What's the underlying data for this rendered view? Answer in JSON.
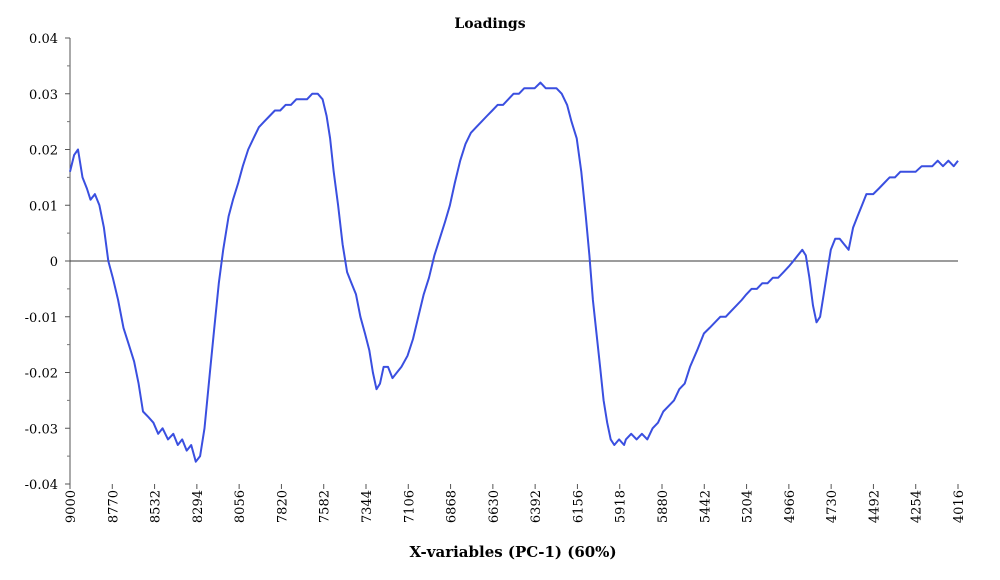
{
  "chart_data": {
    "type": "line",
    "title": "Loadings",
    "xlabel": "X-variables (PC-1) (60%)",
    "ylabel": "",
    "x_reversed": true,
    "xlim": [
      9000,
      4016
    ],
    "ylim": [
      -0.04,
      0.04
    ],
    "x_tick_labels": [
      "9000",
      "8770",
      "8532",
      "8294",
      "8056",
      "7820",
      "7582",
      "7344",
      "7106",
      "6868",
      "6630",
      "6392",
      "6156",
      "5918",
      "5880",
      "5442",
      "5204",
      "4966",
      "4730",
      "4492",
      "4254",
      "4016"
    ],
    "y_ticks": [
      -0.04,
      -0.03,
      -0.02,
      -0.01,
      0,
      0.01,
      0.02,
      0.03,
      0.04
    ],
    "y_tick_labels": [
      "-0.04",
      "-0.03",
      "-0.02",
      "-0.01",
      "0",
      "0.01",
      "0.02",
      "0.03",
      "0.04"
    ],
    "zero_line": true,
    "grid": false,
    "legend": "none",
    "series": [
      {
        "color": "#3a4fe0",
        "points": [
          [
            9000,
            0.016
          ],
          [
            8977,
            0.019
          ],
          [
            8955,
            0.02
          ],
          [
            8930,
            0.015
          ],
          [
            8905,
            0.013
          ],
          [
            8885,
            0.011
          ],
          [
            8860,
            0.012
          ],
          [
            8835,
            0.01
          ],
          [
            8810,
            0.006
          ],
          [
            8785,
            0.0
          ],
          [
            8760,
            -0.003
          ],
          [
            8730,
            -0.007
          ],
          [
            8700,
            -0.012
          ],
          [
            8670,
            -0.015
          ],
          [
            8640,
            -0.018
          ],
          [
            8615,
            -0.022
          ],
          [
            8590,
            -0.027
          ],
          [
            8560,
            -0.028
          ],
          [
            8532,
            -0.029
          ],
          [
            8505,
            -0.031
          ],
          [
            8480,
            -0.03
          ],
          [
            8450,
            -0.032
          ],
          [
            8420,
            -0.031
          ],
          [
            8395,
            -0.033
          ],
          [
            8370,
            -0.032
          ],
          [
            8345,
            -0.034
          ],
          [
            8320,
            -0.033
          ],
          [
            8294,
            -0.036
          ],
          [
            8270,
            -0.035
          ],
          [
            8245,
            -0.03
          ],
          [
            8215,
            -0.02
          ],
          [
            8190,
            -0.012
          ],
          [
            8165,
            -0.004
          ],
          [
            8140,
            0.002
          ],
          [
            8110,
            0.008
          ],
          [
            8085,
            0.011
          ],
          [
            8056,
            0.014
          ],
          [
            8030,
            0.017
          ],
          [
            8000,
            0.02
          ],
          [
            7970,
            0.022
          ],
          [
            7940,
            0.024
          ],
          [
            7910,
            0.025
          ],
          [
            7880,
            0.026
          ],
          [
            7850,
            0.027
          ],
          [
            7820,
            0.027
          ],
          [
            7790,
            0.028
          ],
          [
            7760,
            0.028
          ],
          [
            7730,
            0.029
          ],
          [
            7700,
            0.029
          ],
          [
            7670,
            0.029
          ],
          [
            7640,
            0.03
          ],
          [
            7610,
            0.03
          ],
          [
            7582,
            0.029
          ],
          [
            7560,
            0.026
          ],
          [
            7540,
            0.022
          ],
          [
            7520,
            0.016
          ],
          [
            7495,
            0.01
          ],
          [
            7470,
            0.003
          ],
          [
            7445,
            -0.002
          ],
          [
            7420,
            -0.004
          ],
          [
            7395,
            -0.006
          ],
          [
            7370,
            -0.01
          ],
          [
            7344,
            -0.013
          ],
          [
            7320,
            -0.016
          ],
          [
            7300,
            -0.02
          ],
          [
            7280,
            -0.023
          ],
          [
            7260,
            -0.022
          ],
          [
            7240,
            -0.019
          ],
          [
            7215,
            -0.019
          ],
          [
            7190,
            -0.021
          ],
          [
            7165,
            -0.02
          ],
          [
            7140,
            -0.019
          ],
          [
            7106,
            -0.017
          ],
          [
            7075,
            -0.014
          ],
          [
            7045,
            -0.01
          ],
          [
            7015,
            -0.006
          ],
          [
            6985,
            -0.003
          ],
          [
            6955,
            0.001
          ],
          [
            6925,
            0.004
          ],
          [
            6895,
            0.007
          ],
          [
            6868,
            0.01
          ],
          [
            6840,
            0.014
          ],
          [
            6810,
            0.018
          ],
          [
            6780,
            0.021
          ],
          [
            6750,
            0.023
          ],
          [
            6720,
            0.024
          ],
          [
            6690,
            0.025
          ],
          [
            6660,
            0.026
          ],
          [
            6630,
            0.027
          ],
          [
            6600,
            0.028
          ],
          [
            6570,
            0.028
          ],
          [
            6540,
            0.029
          ],
          [
            6510,
            0.03
          ],
          [
            6480,
            0.03
          ],
          [
            6450,
            0.031
          ],
          [
            6420,
            0.031
          ],
          [
            6392,
            0.031
          ],
          [
            6360,
            0.032
          ],
          [
            6330,
            0.031
          ],
          [
            6300,
            0.031
          ],
          [
            6270,
            0.031
          ],
          [
            6240,
            0.03
          ],
          [
            6210,
            0.028
          ],
          [
            6185,
            0.025
          ],
          [
            6156,
            0.022
          ],
          [
            6130,
            0.016
          ],
          [
            6105,
            0.008
          ],
          [
            6085,
            0.001
          ],
          [
            6065,
            -0.007
          ],
          [
            6045,
            -0.013
          ],
          [
            6025,
            -0.019
          ],
          [
            6005,
            -0.025
          ],
          [
            5985,
            -0.029
          ],
          [
            5965,
            -0.032
          ],
          [
            5945,
            -0.033
          ],
          [
            5918,
            -0.032
          ],
          [
            5890,
            -0.033
          ],
          [
            5880,
            -0.032
          ],
          [
            5850,
            -0.031
          ],
          [
            5820,
            -0.032
          ],
          [
            5790,
            -0.031
          ],
          [
            5760,
            -0.032
          ],
          [
            5730,
            -0.03
          ],
          [
            5700,
            -0.029
          ],
          [
            5670,
            -0.027
          ],
          [
            5640,
            -0.026
          ],
          [
            5610,
            -0.025
          ],
          [
            5580,
            -0.023
          ],
          [
            5550,
            -0.022
          ],
          [
            5520,
            -0.019
          ],
          [
            5480,
            -0.016
          ],
          [
            5442,
            -0.013
          ],
          [
            5410,
            -0.012
          ],
          [
            5380,
            -0.011
          ],
          [
            5350,
            -0.01
          ],
          [
            5320,
            -0.01
          ],
          [
            5290,
            -0.009
          ],
          [
            5260,
            -0.008
          ],
          [
            5230,
            -0.007
          ],
          [
            5204,
            -0.006
          ],
          [
            5175,
            -0.005
          ],
          [
            5145,
            -0.005
          ],
          [
            5115,
            -0.004
          ],
          [
            5085,
            -0.004
          ],
          [
            5055,
            -0.003
          ],
          [
            5025,
            -0.003
          ],
          [
            4995,
            -0.002
          ],
          [
            4966,
            -0.001
          ],
          [
            4940,
            0.0
          ],
          [
            4915,
            0.001
          ],
          [
            4890,
            0.002
          ],
          [
            4870,
            0.001
          ],
          [
            4850,
            -0.003
          ],
          [
            4830,
            -0.008
          ],
          [
            4810,
            -0.011
          ],
          [
            4790,
            -0.01
          ],
          [
            4770,
            -0.006
          ],
          [
            4750,
            -0.002
          ],
          [
            4730,
            0.002
          ],
          [
            4705,
            0.004
          ],
          [
            4680,
            0.004
          ],
          [
            4655,
            0.003
          ],
          [
            4630,
            0.002
          ],
          [
            4605,
            0.006
          ],
          [
            4580,
            0.008
          ],
          [
            4555,
            0.01
          ],
          [
            4530,
            0.012
          ],
          [
            4492,
            0.012
          ],
          [
            4460,
            0.013
          ],
          [
            4430,
            0.014
          ],
          [
            4400,
            0.015
          ],
          [
            4370,
            0.015
          ],
          [
            4340,
            0.016
          ],
          [
            4310,
            0.016
          ],
          [
            4280,
            0.016
          ],
          [
            4254,
            0.016
          ],
          [
            4220,
            0.017
          ],
          [
            4190,
            0.017
          ],
          [
            4160,
            0.017
          ],
          [
            4130,
            0.018
          ],
          [
            4100,
            0.017
          ],
          [
            4070,
            0.018
          ],
          [
            4040,
            0.017
          ],
          [
            4016,
            0.018
          ]
        ]
      }
    ]
  }
}
